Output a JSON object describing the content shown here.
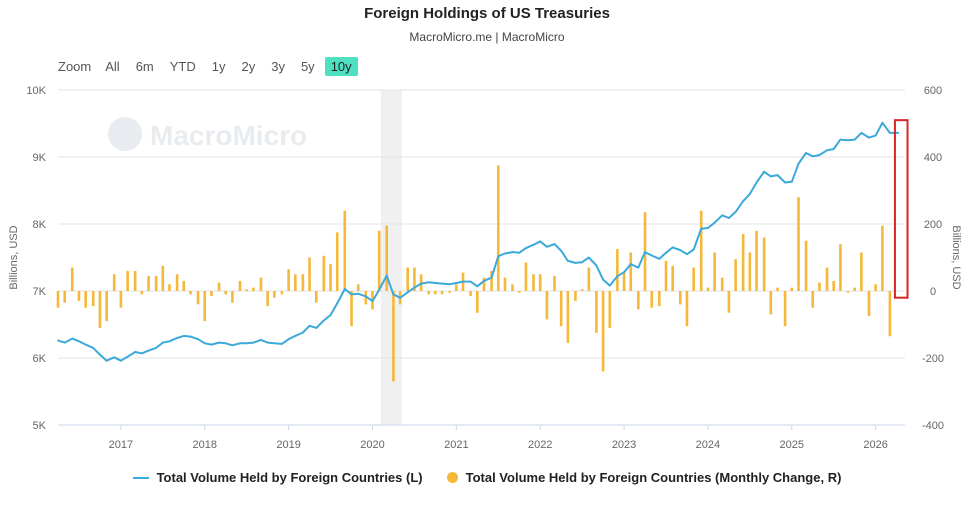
{
  "header": {
    "title": "Foreign Holdings of US Treasuries",
    "subtitle": "MacroMicro.me | MacroMicro"
  },
  "range_selector": {
    "zoom_label": "Zoom",
    "buttons": [
      "All",
      "6m",
      "YTD",
      "1y",
      "2y",
      "3y",
      "5y",
      "10y"
    ],
    "active": "10y"
  },
  "watermark": "MacroMicro",
  "colors": {
    "line": "#3ba9d9",
    "bars": "#f5b83a",
    "active_button": "#4fe0c2",
    "highlight_box": "#d62728",
    "shade": "#e6e6e6"
  },
  "legend": {
    "line_label": "Total Volume Held by Foreign Countries (L)",
    "bar_label": "Total Volume Held by Foreign Countries (Monthly Change, R)"
  },
  "chart_data": {
    "type": "line",
    "title": "Foreign Holdings of US Treasuries",
    "x_tick_labels": [
      "2017",
      "2018",
      "2019",
      "2020",
      "2021",
      "2022",
      "2023",
      "2024",
      "2025",
      "2026"
    ],
    "x_range": [
      2016.25,
      2026.35
    ],
    "y_left": {
      "label": "Billions, USD",
      "ticks": [
        "5K",
        "6K",
        "7K",
        "8K",
        "9K",
        "10K"
      ],
      "range": [
        5000,
        10000
      ]
    },
    "y_right": {
      "label": "Billions, USD",
      "ticks": [
        "-400",
        "-200",
        "0",
        "200",
        "400",
        "600"
      ],
      "range": [
        -400,
        600
      ]
    },
    "grid": "horizontal",
    "legend_position": "bottom",
    "shaded_period": [
      2020.1,
      2020.35
    ],
    "highlight_box": [
      2026.23,
      2026.38
    ],
    "series": [
      {
        "name": "Total Volume Held by Foreign Countries (L)",
        "type": "line",
        "axis": "left",
        "points": [
          [
            2016.25,
            6260
          ],
          [
            2016.33,
            6230
          ],
          [
            2016.42,
            6290
          ],
          [
            2016.5,
            6250
          ],
          [
            2016.58,
            6200
          ],
          [
            2016.67,
            6150
          ],
          [
            2016.75,
            6050
          ],
          [
            2016.83,
            5960
          ],
          [
            2016.92,
            6010
          ],
          [
            2017.0,
            5960
          ],
          [
            2017.08,
            6020
          ],
          [
            2017.17,
            6090
          ],
          [
            2017.25,
            6070
          ],
          [
            2017.33,
            6110
          ],
          [
            2017.42,
            6150
          ],
          [
            2017.5,
            6230
          ],
          [
            2017.58,
            6250
          ],
          [
            2017.67,
            6300
          ],
          [
            2017.75,
            6330
          ],
          [
            2017.83,
            6320
          ],
          [
            2017.92,
            6280
          ],
          [
            2018.0,
            6220
          ],
          [
            2018.08,
            6200
          ],
          [
            2018.17,
            6230
          ],
          [
            2018.25,
            6220
          ],
          [
            2018.33,
            6190
          ],
          [
            2018.42,
            6220
          ],
          [
            2018.5,
            6220
          ],
          [
            2018.58,
            6230
          ],
          [
            2018.67,
            6270
          ],
          [
            2018.75,
            6230
          ],
          [
            2018.83,
            6220
          ],
          [
            2018.92,
            6210
          ],
          [
            2019.0,
            6280
          ],
          [
            2019.08,
            6330
          ],
          [
            2019.17,
            6380
          ],
          [
            2019.25,
            6480
          ],
          [
            2019.33,
            6450
          ],
          [
            2019.42,
            6560
          ],
          [
            2019.5,
            6640
          ],
          [
            2019.58,
            6820
          ],
          [
            2019.67,
            7030
          ],
          [
            2019.75,
            6950
          ],
          [
            2019.83,
            6960
          ],
          [
            2019.92,
            6920
          ],
          [
            2020.0,
            6850
          ],
          [
            2020.08,
            7020
          ],
          [
            2020.17,
            7230
          ],
          [
            2020.25,
            6950
          ],
          [
            2020.33,
            6900
          ],
          [
            2020.42,
            6980
          ],
          [
            2020.5,
            7050
          ],
          [
            2020.58,
            7110
          ],
          [
            2020.67,
            7130
          ],
          [
            2020.75,
            7120
          ],
          [
            2020.83,
            7110
          ],
          [
            2020.92,
            7100
          ],
          [
            2021.0,
            7120
          ],
          [
            2021.08,
            7140
          ],
          [
            2021.17,
            7140
          ],
          [
            2021.25,
            7070
          ],
          [
            2021.33,
            7150
          ],
          [
            2021.42,
            7200
          ],
          [
            2021.5,
            7520
          ],
          [
            2021.58,
            7560
          ],
          [
            2021.67,
            7580
          ],
          [
            2021.75,
            7570
          ],
          [
            2021.83,
            7640
          ],
          [
            2021.92,
            7690
          ],
          [
            2022.0,
            7740
          ],
          [
            2022.08,
            7660
          ],
          [
            2022.17,
            7700
          ],
          [
            2022.25,
            7600
          ],
          [
            2022.33,
            7450
          ],
          [
            2022.42,
            7420
          ],
          [
            2022.5,
            7430
          ],
          [
            2022.58,
            7500
          ],
          [
            2022.67,
            7380
          ],
          [
            2022.75,
            7170
          ],
          [
            2022.83,
            7080
          ],
          [
            2022.92,
            7220
          ],
          [
            2023.0,
            7280
          ],
          [
            2023.08,
            7400
          ],
          [
            2023.17,
            7350
          ],
          [
            2023.25,
            7580
          ],
          [
            2023.33,
            7530
          ],
          [
            2023.42,
            7480
          ],
          [
            2023.5,
            7570
          ],
          [
            2023.58,
            7650
          ],
          [
            2023.67,
            7610
          ],
          [
            2023.75,
            7550
          ],
          [
            2023.83,
            7620
          ],
          [
            2023.92,
            7930
          ],
          [
            2024.0,
            7940
          ],
          [
            2024.08,
            8020
          ],
          [
            2024.17,
            8130
          ],
          [
            2024.25,
            8090
          ],
          [
            2024.33,
            8180
          ],
          [
            2024.42,
            8340
          ],
          [
            2024.5,
            8450
          ],
          [
            2024.58,
            8620
          ],
          [
            2024.67,
            8780
          ],
          [
            2024.75,
            8710
          ],
          [
            2024.83,
            8730
          ],
          [
            2024.92,
            8620
          ],
          [
            2025.0,
            8630
          ],
          [
            2025.08,
            8900
          ],
          [
            2025.17,
            9060
          ],
          [
            2025.25,
            9010
          ],
          [
            2025.33,
            9030
          ],
          [
            2025.42,
            9100
          ],
          [
            2025.5,
            9120
          ],
          [
            2025.58,
            9260
          ],
          [
            2025.67,
            9250
          ],
          [
            2025.75,
            9260
          ],
          [
            2025.83,
            9360
          ],
          [
            2025.92,
            9290
          ],
          [
            2026.0,
            9320
          ],
          [
            2026.08,
            9510
          ],
          [
            2026.17,
            9360
          ],
          [
            2026.27,
            9360
          ]
        ]
      },
      {
        "name": "Total Volume Held by Foreign Countries (Monthly Change, R)",
        "type": "bar",
        "axis": "right",
        "points": [
          [
            2016.25,
            -50
          ],
          [
            2016.33,
            -35
          ],
          [
            2016.42,
            70
          ],
          [
            2016.5,
            -30
          ],
          [
            2016.58,
            -50
          ],
          [
            2016.67,
            -45
          ],
          [
            2016.75,
            -110
          ],
          [
            2016.83,
            -90
          ],
          [
            2016.92,
            50
          ],
          [
            2017.0,
            -50
          ],
          [
            2017.08,
            60
          ],
          [
            2017.17,
            60
          ],
          [
            2017.25,
            -10
          ],
          [
            2017.33,
            45
          ],
          [
            2017.42,
            45
          ],
          [
            2017.5,
            75
          ],
          [
            2017.58,
            20
          ],
          [
            2017.67,
            50
          ],
          [
            2017.75,
            30
          ],
          [
            2017.83,
            -10
          ],
          [
            2017.92,
            -40
          ],
          [
            2018.0,
            -90
          ],
          [
            2018.08,
            -15
          ],
          [
            2018.17,
            25
          ],
          [
            2018.25,
            -10
          ],
          [
            2018.33,
            -35
          ],
          [
            2018.42,
            30
          ],
          [
            2018.5,
            5
          ],
          [
            2018.58,
            10
          ],
          [
            2018.67,
            40
          ],
          [
            2018.75,
            -45
          ],
          [
            2018.83,
            -20
          ],
          [
            2018.92,
            -10
          ],
          [
            2019.0,
            65
          ],
          [
            2019.08,
            50
          ],
          [
            2019.17,
            50
          ],
          [
            2019.25,
            100
          ],
          [
            2019.33,
            -35
          ],
          [
            2019.42,
            105
          ],
          [
            2019.5,
            80
          ],
          [
            2019.58,
            175
          ],
          [
            2019.67,
            240
          ],
          [
            2019.75,
            -105
          ],
          [
            2019.83,
            20
          ],
          [
            2019.92,
            -40
          ],
          [
            2020.0,
            -55
          ],
          [
            2020.08,
            180
          ],
          [
            2020.17,
            195
          ],
          [
            2020.25,
            -270
          ],
          [
            2020.33,
            -40
          ],
          [
            2020.42,
            70
          ],
          [
            2020.5,
            70
          ],
          [
            2020.58,
            50
          ],
          [
            2020.67,
            -10
          ],
          [
            2020.75,
            -10
          ],
          [
            2020.83,
            -10
          ],
          [
            2020.92,
            -5
          ],
          [
            2021.0,
            20
          ],
          [
            2021.08,
            55
          ],
          [
            2021.17,
            -15
          ],
          [
            2021.25,
            -65
          ],
          [
            2021.33,
            40
          ],
          [
            2021.42,
            60
          ],
          [
            2021.5,
            375
          ],
          [
            2021.58,
            40
          ],
          [
            2021.67,
            20
          ],
          [
            2021.75,
            -5
          ],
          [
            2021.83,
            85
          ],
          [
            2021.92,
            50
          ],
          [
            2022.0,
            50
          ],
          [
            2022.08,
            -85
          ],
          [
            2022.17,
            45
          ],
          [
            2022.25,
            -105
          ],
          [
            2022.33,
            -155
          ],
          [
            2022.42,
            -30
          ],
          [
            2022.5,
            5
          ],
          [
            2022.58,
            70
          ],
          [
            2022.67,
            -125
          ],
          [
            2022.75,
            -240
          ],
          [
            2022.83,
            -110
          ],
          [
            2022.92,
            125
          ],
          [
            2023.0,
            55
          ],
          [
            2023.08,
            115
          ],
          [
            2023.17,
            -55
          ],
          [
            2023.25,
            235
          ],
          [
            2023.33,
            -50
          ],
          [
            2023.42,
            -45
          ],
          [
            2023.5,
            90
          ],
          [
            2023.58,
            75
          ],
          [
            2023.67,
            -40
          ],
          [
            2023.75,
            -105
          ],
          [
            2023.83,
            70
          ],
          [
            2023.92,
            240
          ],
          [
            2024.0,
            10
          ],
          [
            2024.08,
            115
          ],
          [
            2024.17,
            40
          ],
          [
            2024.25,
            -65
          ],
          [
            2024.33,
            95
          ],
          [
            2024.42,
            170
          ],
          [
            2024.5,
            115
          ],
          [
            2024.58,
            180
          ],
          [
            2024.67,
            160
          ],
          [
            2024.75,
            -70
          ],
          [
            2024.83,
            10
          ],
          [
            2024.92,
            -105
          ],
          [
            2025.0,
            10
          ],
          [
            2025.08,
            280
          ],
          [
            2025.17,
            150
          ],
          [
            2025.25,
            -50
          ],
          [
            2025.33,
            25
          ],
          [
            2025.42,
            70
          ],
          [
            2025.5,
            30
          ],
          [
            2025.58,
            140
          ],
          [
            2025.67,
            -5
          ],
          [
            2025.75,
            10
          ],
          [
            2025.83,
            115
          ],
          [
            2025.92,
            -75
          ],
          [
            2026.0,
            20
          ],
          [
            2026.08,
            195
          ],
          [
            2026.17,
            -135
          ]
        ]
      }
    ]
  }
}
